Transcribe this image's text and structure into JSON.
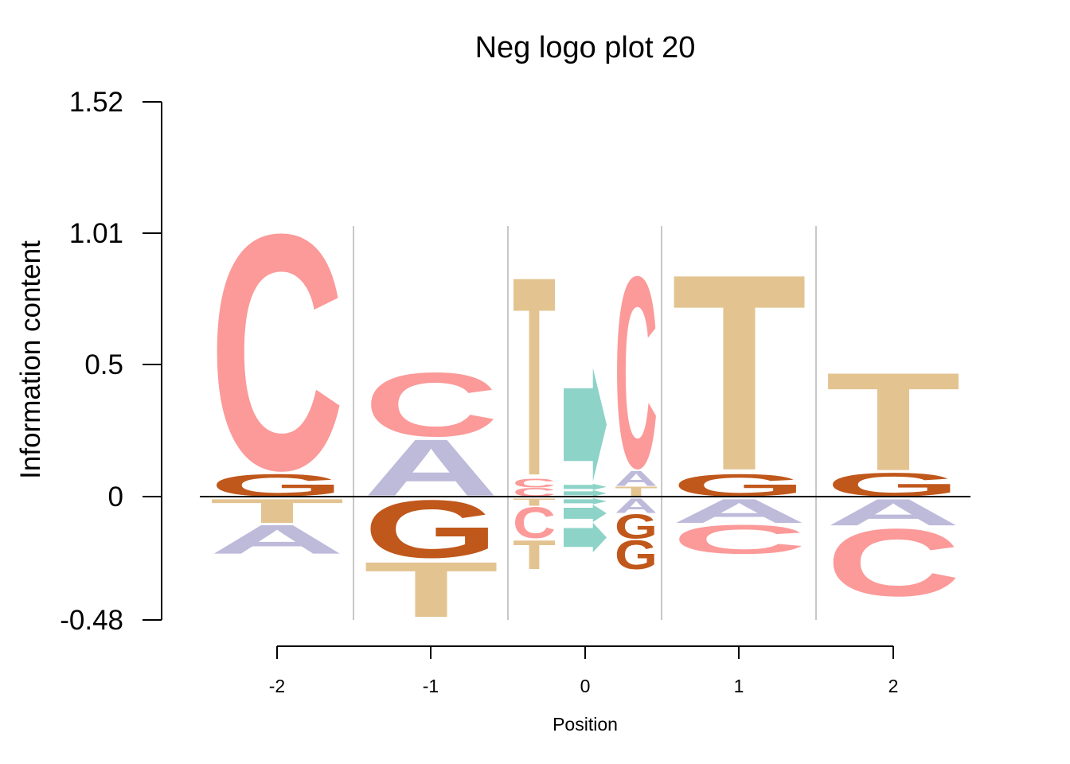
{
  "chart_data": {
    "type": "sequence-logo",
    "title": "Neg logo plot 20",
    "xlabel": "Position",
    "ylabel": "Information content",
    "x_ticks": [
      "-2",
      "-1",
      "0",
      "1",
      "2"
    ],
    "y_ticks": [
      "1.52",
      "1.01",
      "0.5",
      "0",
      "-0.48"
    ],
    "ylim": [
      -0.48,
      1.52
    ],
    "colors": {
      "A": "#bebada",
      "C": "#fb9a99",
      "G": "#c0571b",
      "T": "#e3c390",
      "arrow": "#8dd3c7"
    },
    "positions": [
      {
        "position": "-2",
        "subcols": [
          {
            "pos": [
              {
                "s": "G",
                "v": 0.09
              },
              {
                "s": "C",
                "v": 0.96
              }
            ],
            "neg": [
              {
                "s": "T",
                "v": 0.1
              },
              {
                "s": "A",
                "v": 0.12
              }
            ]
          }
        ]
      },
      {
        "position": "-1",
        "subcols": [
          {
            "pos": [
              {
                "s": "A",
                "v": 0.23
              },
              {
                "s": "C",
                "v": 0.26
              }
            ],
            "neg": [
              {
                "s": "G",
                "v": 0.24
              },
              {
                "s": "T",
                "v": 0.23
              }
            ]
          }
        ]
      },
      {
        "position": "0",
        "subcols": [
          {
            "pos": [
              {
                "s": "C",
                "v": 0.035
              },
              {
                "s": "C",
                "v": 0.035
              },
              {
                "s": "T",
                "v": 0.81
              }
            ],
            "neg": [
              {
                "s": "T",
                "v": 0.03
              },
              {
                "s": "C",
                "v": 0.13
              },
              {
                "s": "T",
                "v": 0.12
              }
            ]
          },
          {
            "pos": [
              {
                "s": "arrow",
                "v": 0.025
              },
              {
                "s": "arrow",
                "v": 0.025
              },
              {
                "s": "arrow",
                "v": 0.45
              }
            ],
            "neg": [
              {
                "s": "arrow",
                "v": 0.025
              },
              {
                "s": "arrow",
                "v": 0.07
              },
              {
                "s": "arrow",
                "v": 0.12
              }
            ]
          },
          {
            "pos": [
              {
                "s": "T",
                "v": 0.04
              },
              {
                "s": "A",
                "v": 0.06
              },
              {
                "s": "C",
                "v": 0.78
              }
            ],
            "neg": [
              {
                "s": "A",
                "v": 0.06
              },
              {
                "s": "G",
                "v": 0.1
              },
              {
                "s": "G",
                "v": 0.12
              }
            ]
          }
        ]
      },
      {
        "position": "1",
        "subcols": [
          {
            "pos": [
              {
                "s": "G",
                "v": 0.09
              },
              {
                "s": "T",
                "v": 0.8
              }
            ],
            "neg": [
              {
                "s": "A",
                "v": 0.1
              },
              {
                "s": "C",
                "v": 0.12
              }
            ]
          }
        ]
      },
      {
        "position": "2",
        "subcols": [
          {
            "pos": [
              {
                "s": "G",
                "v": 0.095
              },
              {
                "s": "T",
                "v": 0.4
              }
            ],
            "neg": [
              {
                "s": "A",
                "v": 0.11
              },
              {
                "s": "C",
                "v": 0.28
              }
            ]
          }
        ]
      }
    ]
  }
}
